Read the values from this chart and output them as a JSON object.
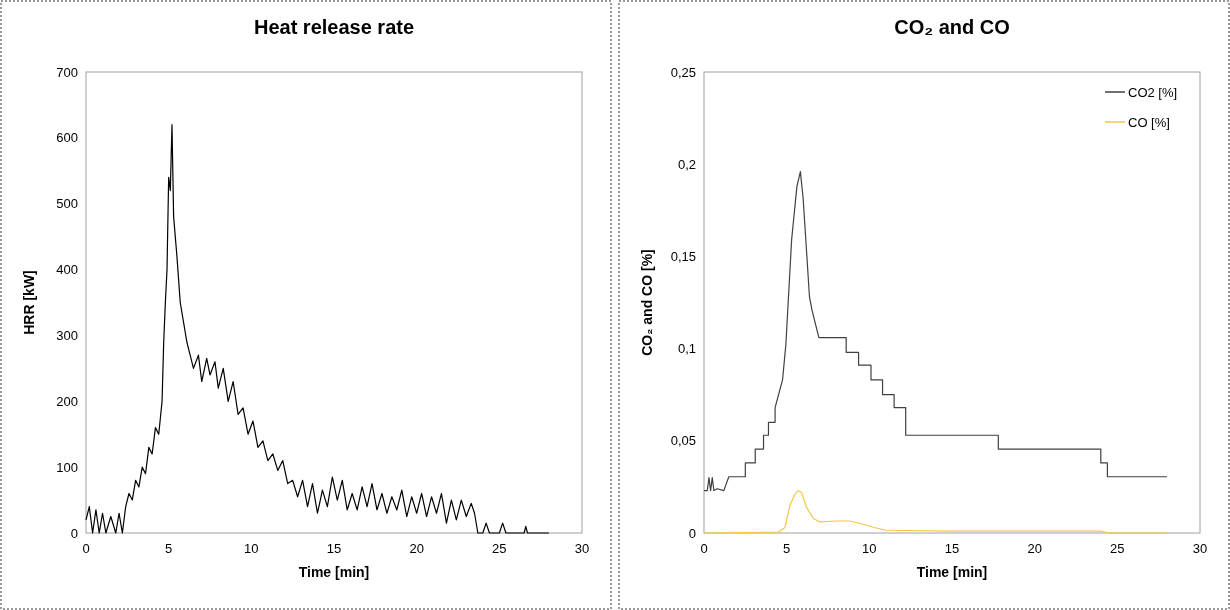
{
  "chart_data": [
    {
      "type": "line",
      "title": "Heat release rate",
      "xlabel": "Time [min]",
      "ylabel": "HRR [kW]",
      "xlim": [
        0,
        30
      ],
      "xticks": [
        0,
        5,
        10,
        15,
        20,
        25,
        30
      ],
      "ylim": [
        0,
        700
      ],
      "yticks": [
        0,
        100,
        200,
        300,
        400,
        500,
        600,
        700
      ],
      "grid": false,
      "legend": false,
      "series": [
        {
          "color": "#000000",
          "x": [
            0,
            0.2,
            0.4,
            0.6,
            0.8,
            1.0,
            1.2,
            1.5,
            1.8,
            2.0,
            2.2,
            2.4,
            2.6,
            2.8,
            3.0,
            3.2,
            3.4,
            3.6,
            3.8,
            4.0,
            4.2,
            4.4,
            4.6,
            4.7,
            4.8,
            4.9,
            5.0,
            5.1,
            5.2,
            5.3,
            5.5,
            5.7,
            5.9,
            6.1,
            6.3,
            6.5,
            6.8,
            7.0,
            7.3,
            7.5,
            7.8,
            8.0,
            8.3,
            8.6,
            8.9,
            9.2,
            9.5,
            9.8,
            10.1,
            10.4,
            10.7,
            11.0,
            11.3,
            11.6,
            11.9,
            12.2,
            12.5,
            12.8,
            13.1,
            13.4,
            13.7,
            14.0,
            14.3,
            14.6,
            14.9,
            15.2,
            15.5,
            15.8,
            16.1,
            16.4,
            16.7,
            17.0,
            17.3,
            17.6,
            17.9,
            18.2,
            18.5,
            18.8,
            19.1,
            19.4,
            19.7,
            20.0,
            20.3,
            20.6,
            20.9,
            21.2,
            21.5,
            21.8,
            22.1,
            22.4,
            22.7,
            23.0,
            23.3,
            23.5,
            23.7,
            24.0,
            24.2,
            24.4,
            25.0,
            25.2,
            25.4,
            26.5,
            26.6,
            26.7,
            28.0
          ],
          "values": [
            20,
            40,
            0,
            35,
            0,
            30,
            0,
            25,
            0,
            30,
            0,
            40,
            60,
            50,
            80,
            70,
            100,
            90,
            130,
            120,
            160,
            150,
            200,
            290,
            350,
            400,
            540,
            520,
            620,
            480,
            420,
            350,
            320,
            290,
            270,
            250,
            270,
            230,
            265,
            240,
            260,
            220,
            250,
            200,
            230,
            180,
            190,
            150,
            170,
            130,
            140,
            110,
            120,
            95,
            110,
            75,
            80,
            55,
            80,
            40,
            75,
            30,
            65,
            40,
            85,
            50,
            80,
            35,
            60,
            35,
            70,
            40,
            75,
            35,
            60,
            30,
            55,
            35,
            65,
            25,
            55,
            30,
            60,
            25,
            55,
            30,
            60,
            15,
            50,
            20,
            50,
            25,
            45,
            30,
            0,
            0,
            15,
            0,
            0,
            15,
            0,
            0,
            10,
            0,
            0
          ]
        }
      ]
    },
    {
      "type": "line",
      "title": "CO₂ and CO",
      "xlabel": "Time [min]",
      "ylabel": "CO₂ and CO [%]",
      "xlim": [
        0,
        30
      ],
      "xticks": [
        0,
        5,
        10,
        15,
        20,
        25,
        30
      ],
      "ylim": [
        0,
        0.25
      ],
      "yticks": [
        {
          "value": 0,
          "label": "0"
        },
        {
          "value": 0.05,
          "label": "0,05"
        },
        {
          "value": 0.1,
          "label": "0,1"
        },
        {
          "value": 0.15,
          "label": "0,15"
        },
        {
          "value": 0.2,
          "label": "0,2"
        },
        {
          "value": 0.25,
          "label": "0,25"
        }
      ],
      "grid": false,
      "legend": "top right",
      "series": [
        {
          "name": "CO2 [%]",
          "color": "#404040",
          "x": [
            0,
            0.2,
            0.3,
            0.4,
            0.5,
            0.6,
            0.8,
            1.2,
            1.5,
            2.5,
            2.5,
            3.1,
            3.1,
            3.6,
            3.6,
            3.9,
            3.9,
            4.3,
            4.3,
            4.75,
            4.95,
            5.3,
            5.62,
            5.83,
            6.0,
            6.18,
            6.38,
            6.53,
            6.75,
            6.95,
            8.6,
            8.6,
            9.35,
            9.35,
            10.1,
            10.1,
            10.8,
            10.8,
            11.5,
            11.5,
            12.2,
            12.2,
            17.8,
            17.8,
            24.0,
            24.0,
            24.4,
            24.4,
            28.0
          ],
          "values": [
            0.023,
            0.023,
            0.03,
            0.023,
            0.03,
            0.023,
            0.024,
            0.023,
            0.0305,
            0.0305,
            0.038,
            0.038,
            0.0455,
            0.0455,
            0.053,
            0.053,
            0.06,
            0.06,
            0.068,
            0.083,
            0.102,
            0.159,
            0.188,
            0.196,
            0.181,
            0.156,
            0.128,
            0.121,
            0.113,
            0.106,
            0.106,
            0.098,
            0.098,
            0.091,
            0.091,
            0.083,
            0.083,
            0.075,
            0.075,
            0.068,
            0.068,
            0.053,
            0.053,
            0.0455,
            0.0455,
            0.038,
            0.038,
            0.0305,
            0.0305
          ]
        },
        {
          "name": "CO [%]",
          "color": "#f5c842",
          "x": [
            0,
            4.5,
            4.9,
            5.2,
            5.5,
            5.7,
            5.9,
            6.2,
            6.6,
            7.0,
            8.0,
            8.8,
            9.5,
            10.3,
            11.0,
            15.0,
            24.0,
            24.5,
            28.0
          ],
          "values": [
            0,
            0.0005,
            0.003,
            0.015,
            0.021,
            0.023,
            0.022,
            0.014,
            0.008,
            0.006,
            0.0065,
            0.0065,
            0.005,
            0.003,
            0.0015,
            0.001,
            0.001,
            0,
            0
          ]
        }
      ]
    }
  ]
}
